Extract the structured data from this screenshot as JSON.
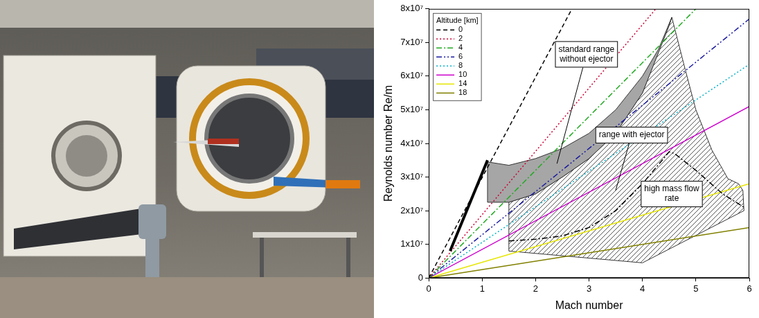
{
  "chart_data": {
    "type": "line",
    "x_label": "Mach number",
    "y_label": "Reynolds number Re/m",
    "xlim": [
      0,
      6
    ],
    "xticks": [
      0,
      1,
      2,
      3,
      4,
      5,
      6
    ],
    "ylim": [
      0,
      80000000
    ],
    "yticks": [
      0,
      {
        "value": 10000000,
        "label": "1x10⁷"
      },
      {
        "value": 20000000,
        "label": "2x10⁷"
      },
      {
        "value": 30000000,
        "label": "3x10⁷"
      },
      {
        "value": 40000000,
        "label": "4x10⁷"
      },
      {
        "value": 50000000,
        "label": "5x10⁷"
      },
      {
        "value": 60000000,
        "label": "6x10⁷"
      },
      {
        "value": 70000000,
        "label": "7x10⁷"
      },
      {
        "value": 80000000,
        "label": "8x10⁷"
      }
    ],
    "grid": false,
    "legend": "top-left",
    "legend_title": "Altitude [km]",
    "series": [
      {
        "name": "0",
        "color": "#000000",
        "line_style": "dashed",
        "x": [
          0,
          2.68
        ],
        "values": [
          0,
          80000000
        ]
      },
      {
        "name": "2",
        "color": "#cc0033",
        "line_style": "dotted",
        "x": [
          0,
          4.25
        ],
        "values": [
          0,
          80000000
        ]
      },
      {
        "name": "4",
        "color": "#22aa22",
        "line_style": "dashdot",
        "x": [
          0,
          5.0
        ],
        "values": [
          0,
          80000000
        ]
      },
      {
        "name": "6",
        "color": "#1a1aa0",
        "line_style": "dashdotdot",
        "x": [
          0,
          6
        ],
        "values": [
          0,
          77000000
        ]
      },
      {
        "name": "8",
        "color": "#00b0c8",
        "line_style": "dotted",
        "x": [
          0,
          6
        ],
        "values": [
          0,
          63500000
        ]
      },
      {
        "name": "10",
        "color": "#cc00cc",
        "line_style": "solid",
        "x": [
          0,
          6
        ],
        "values": [
          0,
          51000000
        ]
      },
      {
        "name": "14",
        "color": "#e6e600",
        "line_style": "solid",
        "x": [
          0,
          6
        ],
        "values": [
          0,
          28000000
        ]
      },
      {
        "name": "18",
        "color": "#808000",
        "line_style": "solid",
        "x": [
          0,
          6
        ],
        "values": [
          0,
          15000000
        ]
      }
    ],
    "regions": [
      {
        "text": "range with ejector",
        "type": "hatched_area",
        "color": "#555555",
        "x": [
          1.5,
          2,
          2.5,
          3,
          3.5,
          4,
          4.55,
          4.8,
          5,
          5.3,
          5.6,
          5.8,
          5.88,
          5.9,
          4,
          1.5
        ],
        "values": [
          22500000,
          25000000,
          30000000,
          35500000,
          43000000,
          55000000,
          77500000,
          62000000,
          50000000,
          38000000,
          29500000,
          28000000,
          26000000,
          20000000,
          4500000,
          8000000
        ]
      },
      {
        "text": "standard range without ejector",
        "type": "area",
        "color": "#a6a6a6",
        "x": [
          1.1,
          1.5,
          2,
          2.5,
          3,
          3.5,
          4,
          4.3,
          4.55,
          4.5,
          4,
          3.5,
          3,
          2.5,
          2,
          1.5,
          1.1
        ],
        "values": [
          34500000,
          33500000,
          35500000,
          38500000,
          43000000,
          50000000,
          60000000,
          68000000,
          77500000,
          75000000,
          55000000,
          43000000,
          35500000,
          30000000,
          25000000,
          22500000,
          22500000
        ]
      },
      {
        "text": "high mass flow rate",
        "type": "line",
        "color": "#000000",
        "line_style": "dashdot",
        "x": [
          1.5,
          2,
          2.5,
          3,
          3.5,
          4,
          4.5,
          4.6,
          5,
          5.5,
          5.9
        ],
        "values": [
          11000000,
          11500000,
          12500000,
          15000000,
          20000000,
          28000000,
          37500000,
          37000000,
          32000000,
          25000000,
          21000000
        ]
      },
      {
        "type": "line",
        "color": "#000000",
        "line_style": "thick",
        "x": [
          0.4,
          1.1
        ],
        "values": [
          8000000,
          35000000
        ]
      }
    ]
  }
}
